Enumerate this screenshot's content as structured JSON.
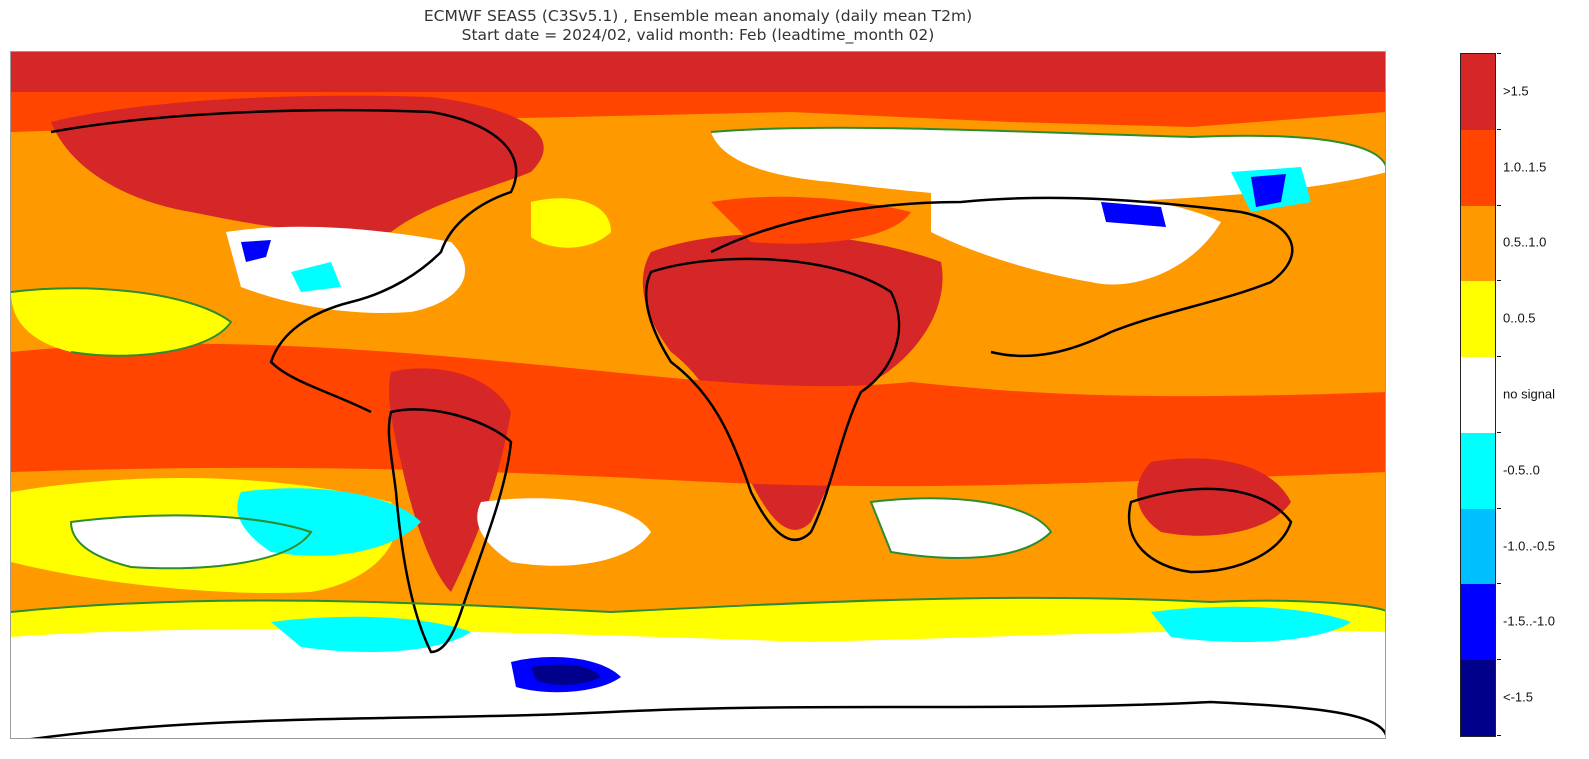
{
  "title": {
    "line1": "ECMWF SEAS5 (C3Sv5.1) , Ensemble mean anomaly (daily mean T2m)",
    "line2": "Start date = 2024/02, valid month: Feb (leadtime_month 02)"
  },
  "legend": {
    "classes": [
      {
        "label": ">1.5",
        "color": "#d62728"
      },
      {
        "label": "1.0..1.5",
        "color": "#ff4500"
      },
      {
        "label": "0.5..1.0",
        "color": "#ff9900"
      },
      {
        "label": "0..0.5",
        "color": "#ffff00"
      },
      {
        "label": "no signal",
        "color": "#ffffff"
      },
      {
        "label": "-0.5..0",
        "color": "#00ffff"
      },
      {
        "label": "-1.0..-0.5",
        "color": "#00bfff"
      },
      {
        "label": "-1.5..-1.0",
        "color": "#0000ff"
      },
      {
        "label": "<-1.5",
        "color": "#00008b"
      }
    ]
  },
  "colors": {
    "coastline": "#000000",
    "significance_contour": "#2e8b2e",
    "border": "#9a9a9a"
  }
}
